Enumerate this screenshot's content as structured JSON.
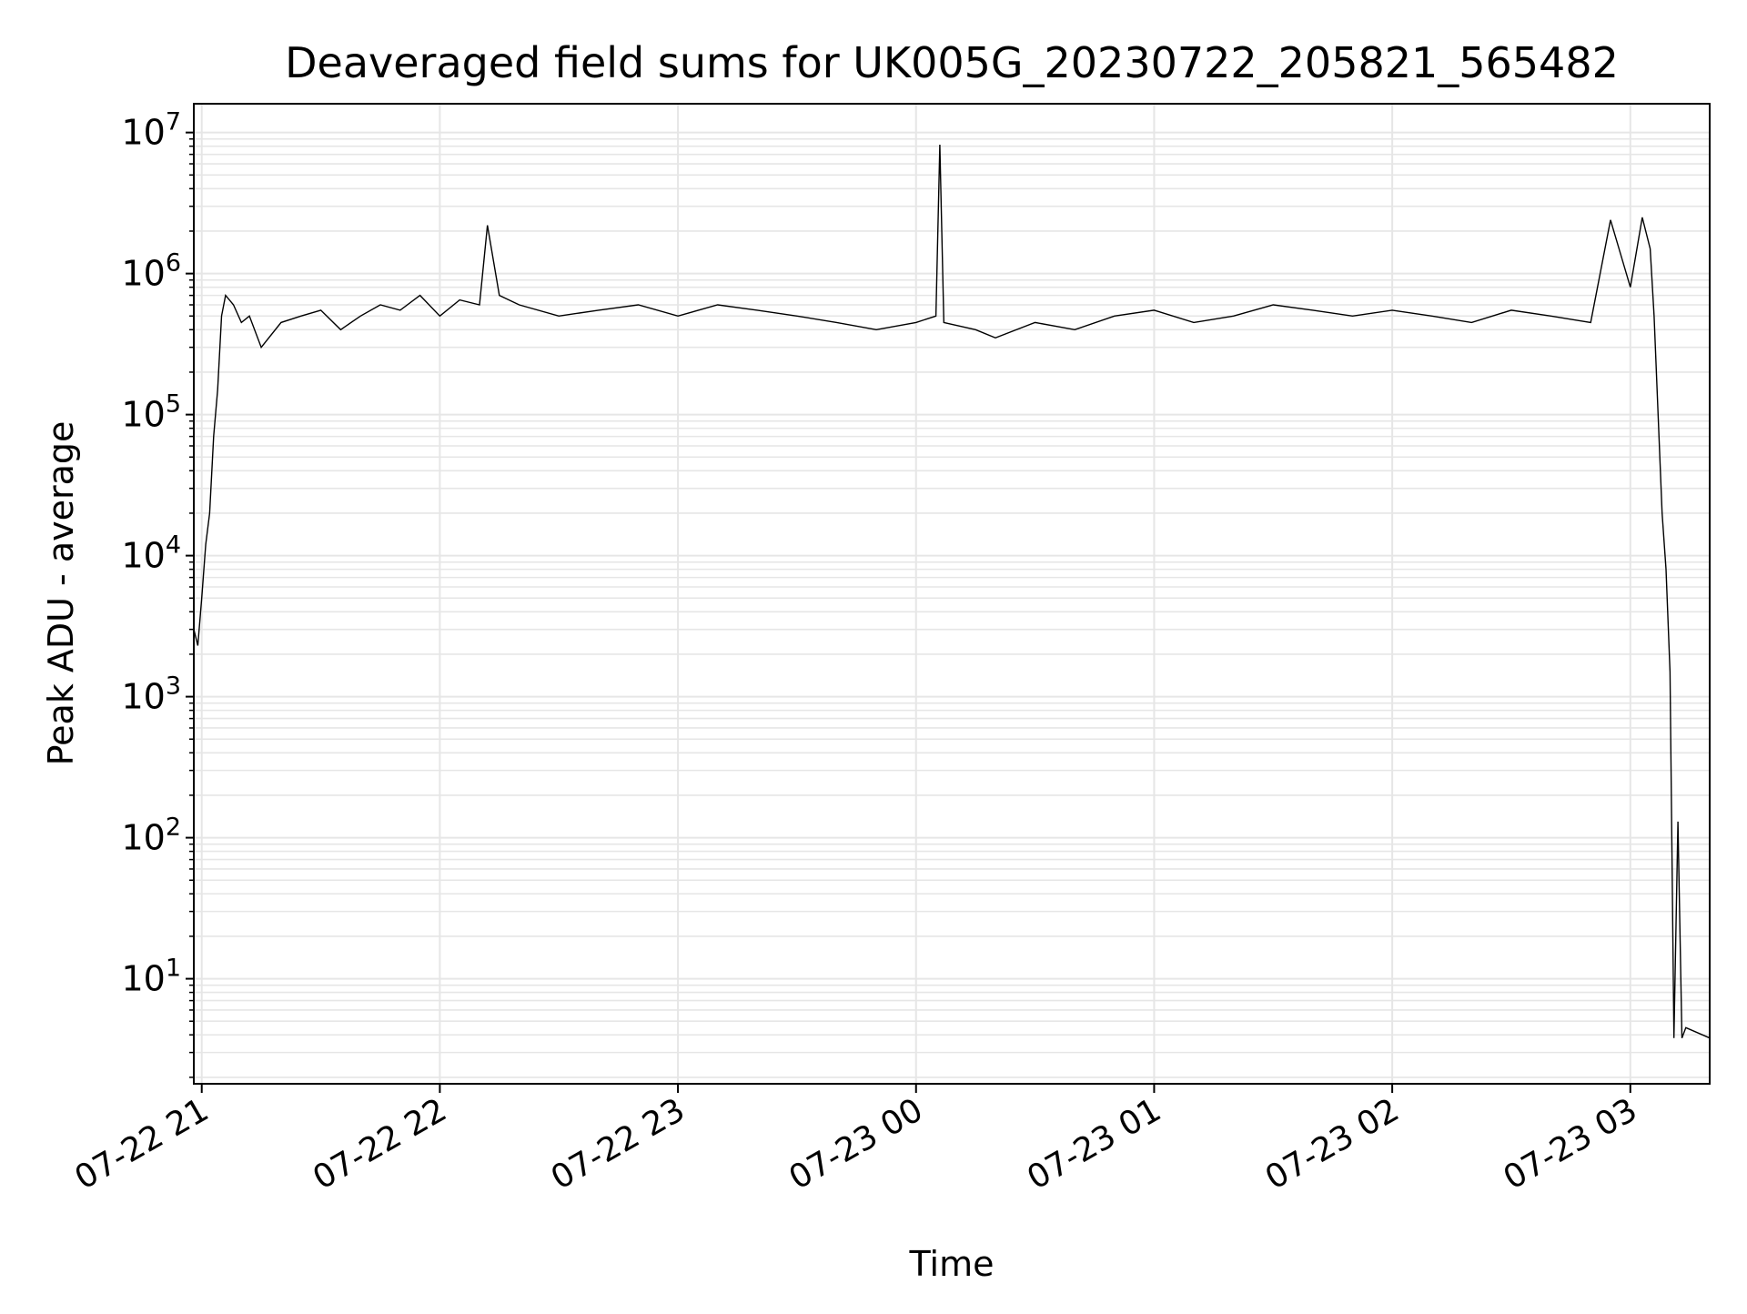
{
  "chart_data": {
    "type": "line",
    "title": "Deaveraged field sums for UK005G_20230722_205821_565482",
    "xlabel": "Time",
    "ylabel": "Peak ADU - average",
    "yscale": "log",
    "ylim": [
      1.8,
      16000000
    ],
    "xlim": [
      "2023-07-22 20:58",
      "2023-07-23 03:20"
    ],
    "x_ticks": [
      {
        "label": "07-22 21",
        "value": "2023-07-22 21:00"
      },
      {
        "label": "07-22 22",
        "value": "2023-07-22 22:00"
      },
      {
        "label": "07-22 23",
        "value": "2023-07-22 23:00"
      },
      {
        "label": "07-23 00",
        "value": "2023-07-23 00:00"
      },
      {
        "label": "07-23 01",
        "value": "2023-07-23 01:00"
      },
      {
        "label": "07-23 02",
        "value": "2023-07-23 02:00"
      },
      {
        "label": "07-23 03",
        "value": "2023-07-23 03:00"
      }
    ],
    "y_ticks": [
      {
        "base": "10",
        "exp": "1",
        "value": 10
      },
      {
        "base": "10",
        "exp": "2",
        "value": 100
      },
      {
        "base": "10",
        "exp": "3",
        "value": 1000
      },
      {
        "base": "10",
        "exp": "4",
        "value": 10000
      },
      {
        "base": "10",
        "exp": "5",
        "value": 100000
      },
      {
        "base": "10",
        "exp": "6",
        "value": 1000000
      },
      {
        "base": "10",
        "exp": "7",
        "value": 10000000
      }
    ],
    "grid": true,
    "line_color": "#000000",
    "grid_color": "#e6e6e6",
    "series": [
      {
        "x": [
          "2023-07-22 20:58",
          "2023-07-22 20:59",
          "2023-07-22 21:00",
          "2023-07-22 21:01",
          "2023-07-22 21:02",
          "2023-07-22 21:03",
          "2023-07-22 21:04",
          "2023-07-22 21:05",
          "2023-07-22 21:06",
          "2023-07-22 21:08",
          "2023-07-22 21:10",
          "2023-07-22 21:12",
          "2023-07-22 21:15",
          "2023-07-22 21:20",
          "2023-07-22 21:25",
          "2023-07-22 21:30",
          "2023-07-22 21:35",
          "2023-07-22 21:40",
          "2023-07-22 21:45",
          "2023-07-22 21:50",
          "2023-07-22 21:55",
          "2023-07-22 22:00",
          "2023-07-22 22:05",
          "2023-07-22 22:10",
          "2023-07-22 22:12",
          "2023-07-22 22:15",
          "2023-07-22 22:20",
          "2023-07-22 22:30",
          "2023-07-22 22:40",
          "2023-07-22 22:50",
          "2023-07-22 23:00",
          "2023-07-22 23:10",
          "2023-07-22 23:20",
          "2023-07-22 23:30",
          "2023-07-22 23:40",
          "2023-07-22 23:50",
          "2023-07-23 00:00",
          "2023-07-23 00:05",
          "2023-07-23 00:06",
          "2023-07-23 00:07",
          "2023-07-23 00:15",
          "2023-07-23 00:20",
          "2023-07-23 00:30",
          "2023-07-23 00:40",
          "2023-07-23 00:50",
          "2023-07-23 01:00",
          "2023-07-23 01:10",
          "2023-07-23 01:20",
          "2023-07-23 01:30",
          "2023-07-23 01:40",
          "2023-07-23 01:50",
          "2023-07-23 02:00",
          "2023-07-23 02:10",
          "2023-07-23 02:20",
          "2023-07-23 02:30",
          "2023-07-23 02:40",
          "2023-07-23 02:50",
          "2023-07-23 02:55",
          "2023-07-23 03:00",
          "2023-07-23 03:03",
          "2023-07-23 03:05",
          "2023-07-23 03:06",
          "2023-07-23 03:07",
          "2023-07-23 03:08",
          "2023-07-23 03:09",
          "2023-07-23 03:10",
          "2023-07-23 03:11",
          "2023-07-23 03:12",
          "2023-07-23 03:13",
          "2023-07-23 03:14",
          "2023-07-23 03:20"
        ],
        "values": [
          3000,
          2300,
          5000,
          12000,
          20000,
          70000,
          150000,
          500000,
          700000,
          600000,
          450000,
          500000,
          300000,
          450000,
          500000,
          550000,
          400000,
          500000,
          600000,
          550000,
          700000,
          500000,
          650000,
          600000,
          2200000,
          700000,
          600000,
          500000,
          550000,
          600000,
          500000,
          600000,
          550000,
          500000,
          450000,
          400000,
          450000,
          500000,
          8200000,
          450000,
          400000,
          350000,
          450000,
          400000,
          500000,
          550000,
          450000,
          500000,
          600000,
          550000,
          500000,
          550000,
          500000,
          450000,
          550000,
          500000,
          450000,
          2400000,
          800000,
          2500000,
          1500000,
          500000,
          100000,
          20000,
          8000,
          1500,
          3.8,
          130,
          3.8,
          4.5,
          3.8
        ]
      }
    ]
  }
}
